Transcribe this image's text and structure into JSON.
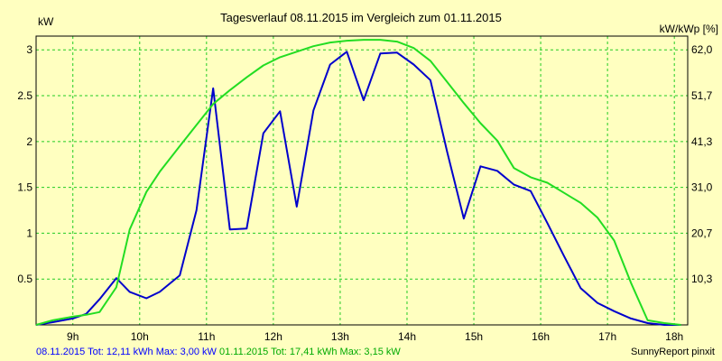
{
  "chart_data": {
    "type": "line",
    "title": "Tagesverlauf 08.11.2015 im Vergleich zum 01.11.2015",
    "ylabel": "kW",
    "y2label": "kW/kWp [%]",
    "x_ticks": [
      "9h",
      "10h",
      "11h",
      "12h",
      "13h",
      "14h",
      "15h",
      "16h",
      "17h",
      "18h"
    ],
    "y_ticks": [
      "0.5",
      "1",
      "1.5",
      "2",
      "2.5",
      "3"
    ],
    "y2_ticks": [
      "10,3",
      "20,7",
      "31,0",
      "41,3",
      "51,7",
      "62,0"
    ],
    "xlim": [
      8.45,
      18.2
    ],
    "ylim": [
      0,
      3.15
    ],
    "grid": true,
    "series": [
      {
        "name": "08.11.2015",
        "color": "#0000cc",
        "x": [
          8.45,
          8.7,
          9.0,
          9.2,
          9.4,
          9.65,
          9.85,
          10.1,
          10.3,
          10.6,
          10.85,
          11.1,
          11.35,
          11.6,
          11.85,
          12.1,
          12.35,
          12.6,
          12.85,
          13.1,
          13.35,
          13.6,
          13.85,
          14.1,
          14.35,
          14.6,
          14.85,
          15.1,
          15.35,
          15.6,
          15.85,
          16.1,
          16.35,
          16.6,
          16.85,
          17.1,
          17.35,
          17.6,
          17.85,
          18.1
        ],
        "y": [
          0.0,
          0.03,
          0.07,
          0.12,
          0.28,
          0.51,
          0.36,
          0.29,
          0.36,
          0.54,
          1.25,
          2.58,
          1.04,
          1.05,
          2.09,
          2.33,
          1.29,
          2.34,
          2.84,
          2.98,
          2.45,
          2.96,
          2.97,
          2.84,
          2.67,
          1.89,
          1.16,
          1.73,
          1.68,
          1.53,
          1.46,
          1.11,
          0.75,
          0.4,
          0.24,
          0.15,
          0.07,
          0.02,
          0.0,
          0.0
        ]
      },
      {
        "name": "01.11.2015",
        "color": "#22dd22",
        "x": [
          8.45,
          8.7,
          9.0,
          9.2,
          9.4,
          9.65,
          9.85,
          10.1,
          10.3,
          10.6,
          10.85,
          11.1,
          11.35,
          11.6,
          11.85,
          12.1,
          12.35,
          12.6,
          12.85,
          13.1,
          13.35,
          13.6,
          13.85,
          14.1,
          14.35,
          14.6,
          14.85,
          15.1,
          15.35,
          15.6,
          15.85,
          16.1,
          16.35,
          16.6,
          16.85,
          17.1,
          17.35,
          17.6,
          17.85,
          18.1
        ],
        "y": [
          0.0,
          0.05,
          0.09,
          0.11,
          0.14,
          0.41,
          1.04,
          1.45,
          1.67,
          1.95,
          2.18,
          2.41,
          2.56,
          2.7,
          2.83,
          2.92,
          2.98,
          3.04,
          3.08,
          3.1,
          3.11,
          3.11,
          3.09,
          3.02,
          2.88,
          2.65,
          2.42,
          2.2,
          2.01,
          1.71,
          1.61,
          1.55,
          1.44,
          1.33,
          1.17,
          0.92,
          0.46,
          0.05,
          0.02,
          0.0
        ]
      }
    ]
  },
  "footer": {
    "blue_text": "08.11.2015 Tot: 12,11 kWh Max: 3,00 kW",
    "green_text": "01.11.2015 Tot: 17,41 kWh Max: 3,15 kW",
    "brand": "SunnyReport pinxit"
  }
}
